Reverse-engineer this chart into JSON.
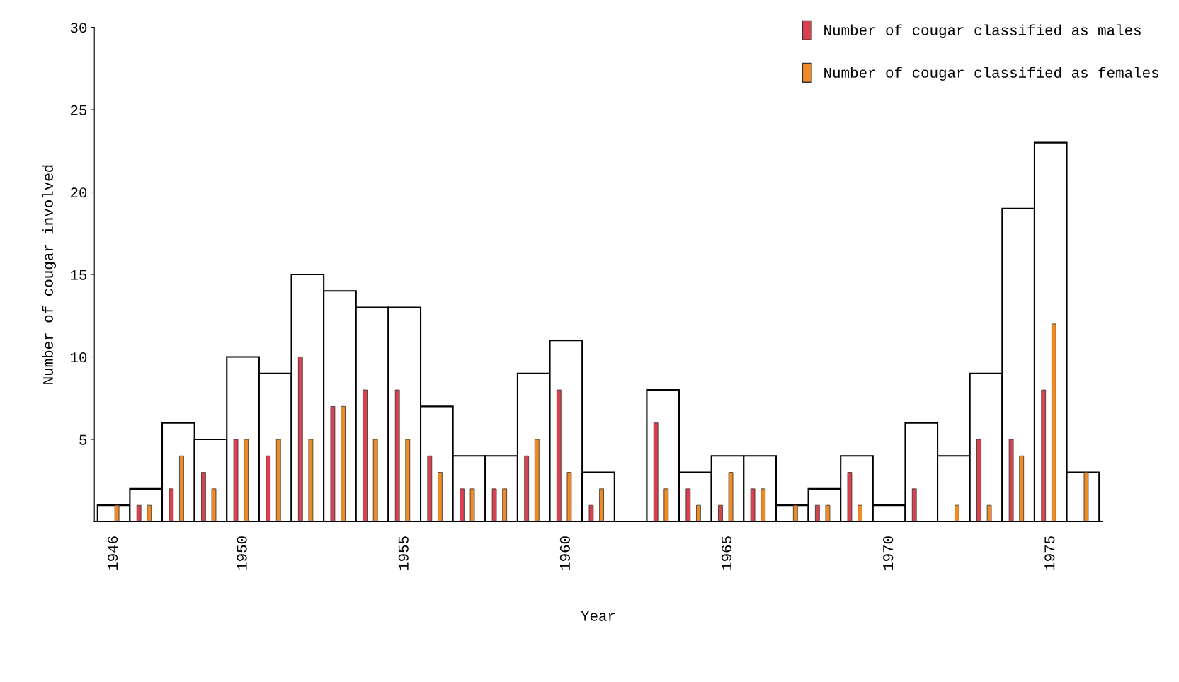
{
  "chart_data": {
    "type": "bar",
    "xlabel": "Year",
    "ylabel": "Number of cougar involved",
    "categories": [
      "1946",
      null,
      null,
      null,
      "1950",
      null,
      null,
      null,
      null,
      "1955",
      null,
      null,
      null,
      null,
      "1960",
      null,
      null,
      null,
      null,
      "1965",
      null,
      null,
      null,
      null,
      "1970",
      null,
      null,
      null,
      null,
      "1975",
      null
    ],
    "series": [
      {
        "color": "#ffffff",
        "values": [
          1,
          2,
          6,
          5,
          10,
          9,
          15,
          14,
          13,
          13,
          7,
          4,
          4,
          9,
          11,
          3,
          0,
          8,
          3,
          4,
          4,
          1,
          2,
          4,
          1,
          6,
          4,
          9,
          19,
          23,
          3
        ]
      },
      {
        "name": "Number of cougar classified as males",
        "color": "#d9414e",
        "values": [
          0,
          1,
          2,
          3,
          5,
          4,
          10,
          7,
          8,
          8,
          4,
          2,
          2,
          4,
          8,
          1,
          0,
          6,
          2,
          1,
          2,
          0,
          1,
          3,
          0,
          2,
          0,
          5,
          5,
          8,
          0
        ]
      },
      {
        "name": "Number of cougar classified as females",
        "color": "#f08a24",
        "values": [
          1,
          1,
          4,
          2,
          5,
          5,
          5,
          7,
          5,
          5,
          3,
          2,
          2,
          5,
          3,
          2,
          0,
          2,
          1,
          3,
          2,
          1,
          1,
          1,
          0,
          0,
          1,
          1,
          4,
          12,
          3
        ]
      }
    ],
    "ylim": [
      0,
      30
    ],
    "yticks": [
      5,
      10,
      15,
      20,
      25,
      30
    ],
    "grid": false,
    "legend": "top right"
  }
}
